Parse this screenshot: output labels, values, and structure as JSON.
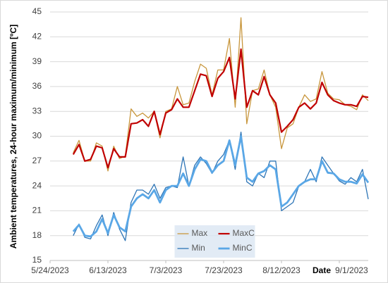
{
  "chart_data": {
    "type": "line",
    "y_label": "Ambient temperatures, 24-hour maximum/minimum [ºC]",
    "x_label": "Date",
    "x": [
      "6/1/2023",
      "6/3/2023",
      "6/5/2023",
      "6/7/2023",
      "6/9/2023",
      "6/11/2023",
      "6/13/2023",
      "6/15/2023",
      "6/17/2023",
      "6/19/2023",
      "6/21/2023",
      "6/23/2023",
      "6/25/2023",
      "6/27/2023",
      "6/29/2023",
      "7/1/2023",
      "7/3/2023",
      "7/5/2023",
      "7/7/2023",
      "7/9/2023",
      "7/11/2023",
      "7/13/2023",
      "7/15/2023",
      "7/17/2023",
      "7/19/2023",
      "7/21/2023",
      "7/23/2023",
      "7/25/2023",
      "7/27/2023",
      "7/29/2023",
      "7/31/2023",
      "8/2/2023",
      "8/4/2023",
      "8/6/2023",
      "8/8/2023",
      "8/10/2023",
      "8/12/2023",
      "8/14/2023",
      "8/16/2023",
      "8/18/2023",
      "8/20/2023",
      "8/22/2023",
      "8/24/2023",
      "8/26/2023",
      "8/28/2023",
      "8/30/2023",
      "9/1/2023",
      "9/3/2023",
      "9/5/2023",
      "9/7/2023",
      "9/9/2023",
      "9/11/2023"
    ],
    "series": [
      {
        "name": "Max",
        "color": "#c8963c",
        "width": 1.3,
        "values": [
          28,
          29.5,
          27,
          27,
          29.2,
          28.8,
          25.8,
          28.8,
          27.3,
          27.6,
          33.3,
          32.4,
          32.8,
          32.2,
          33,
          29.8,
          33,
          33.3,
          36,
          33.8,
          34,
          36.6,
          38.7,
          38.2,
          35,
          38,
          38,
          41.8,
          33.5,
          44.3,
          31.5,
          35.5,
          35.7,
          38,
          35,
          33.5,
          28.5,
          31,
          31.5,
          33.5,
          35,
          34.2,
          34.5,
          37.8,
          35.2,
          34.5,
          34.4,
          33.8,
          33.6,
          33.2,
          35,
          34.3
        ]
      },
      {
        "name": "MaxC",
        "color": "#c00000",
        "width": 2.2,
        "values": [
          27.8,
          29,
          27,
          27.2,
          28.8,
          28.6,
          26.2,
          28.5,
          27.5,
          27.5,
          31.5,
          31.6,
          32,
          31.2,
          33,
          30.2,
          32.8,
          33.2,
          34.5,
          33.5,
          33.5,
          35.5,
          37.5,
          37.3,
          34.8,
          37,
          37.8,
          39.5,
          34.5,
          40.5,
          33.5,
          35.5,
          35,
          37.2,
          35,
          34,
          30.5,
          31.2,
          32,
          33.5,
          34,
          33.3,
          34,
          36.5,
          35,
          34.3,
          34,
          33.8,
          33.8,
          33.6,
          34.8,
          34.7
        ]
      },
      {
        "name": "Min",
        "color": "#2e75b6",
        "width": 1.3,
        "values": [
          18,
          19.4,
          17.8,
          17.6,
          19.2,
          20.5,
          18,
          20.8,
          18.8,
          17.4,
          22,
          23.5,
          23.5,
          23,
          24.2,
          22.5,
          23.8,
          24,
          23.8,
          27.5,
          24,
          26.5,
          27.5,
          26.7,
          25.5,
          27,
          27.8,
          29.5,
          26,
          30.5,
          24.5,
          24,
          25.5,
          25,
          27,
          27,
          21,
          21.5,
          22,
          24,
          24.5,
          26,
          24.5,
          27.5,
          26.5,
          25.5,
          24.6,
          24.2,
          25,
          24.5,
          26,
          22.4
        ]
      },
      {
        "name": "MinC",
        "color": "#5aa7e6",
        "width": 2.8,
        "values": [
          18.5,
          19.3,
          18,
          17.9,
          18.5,
          20,
          18.3,
          20.5,
          19,
          18.5,
          21.5,
          22.5,
          23,
          22.5,
          23.5,
          22,
          23.5,
          24,
          24,
          25.5,
          24,
          26,
          27.2,
          27,
          25.6,
          26.5,
          27,
          29.5,
          26.5,
          30,
          25,
          24.5,
          25.5,
          25.8,
          26.5,
          26,
          21.5,
          22,
          23,
          24,
          24.5,
          24.8,
          24.8,
          27,
          25.6,
          25.5,
          24.8,
          24.5,
          24.5,
          24.3,
          25.4,
          24.4
        ]
      }
    ],
    "xlim": [
      "5/24/2023",
      "9/11/2023"
    ],
    "xticks": [
      "5/24/2023",
      "6/13/2023",
      "7/3/2023",
      "7/23/2023",
      "8/12/2023",
      "9/1/2023"
    ],
    "ylim": [
      15,
      45
    ],
    "yticks": [
      15,
      18,
      21,
      24,
      27,
      30,
      33,
      36,
      39,
      42,
      45
    ],
    "grid": true,
    "legend": "bottom-center"
  }
}
